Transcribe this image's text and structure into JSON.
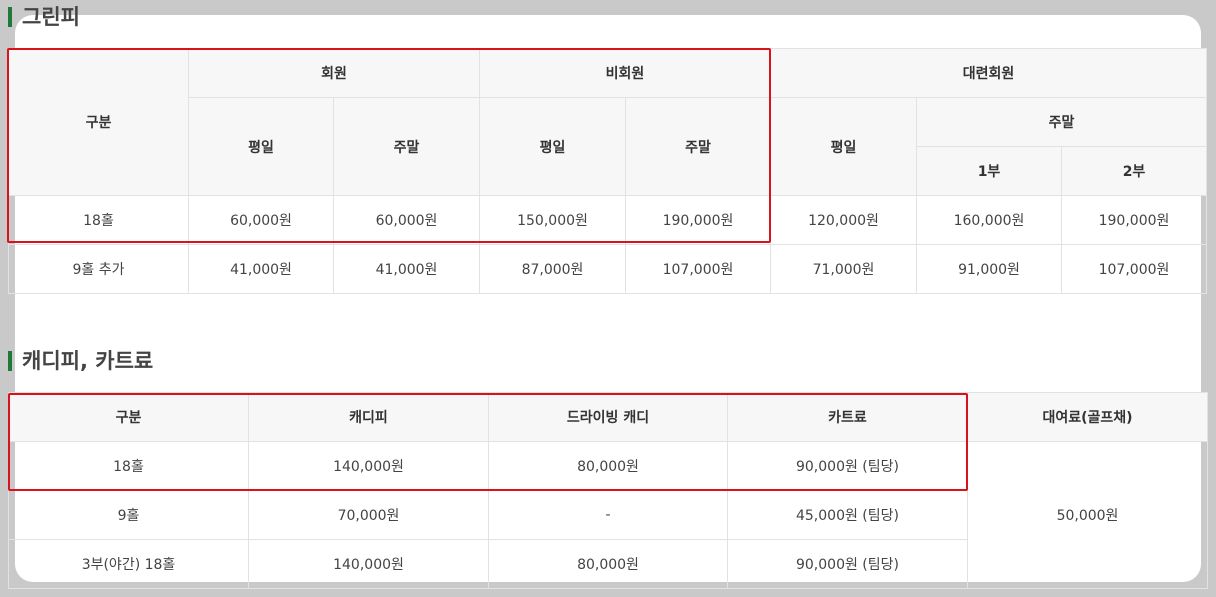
{
  "green_fee": {
    "title": "그린피",
    "headers": {
      "category": "구분",
      "member": "회원",
      "non_member": "비회원",
      "associate": "대련회원",
      "weekday": "평일",
      "weekend": "주말",
      "part1": "1부",
      "part2": "2부"
    },
    "rows": [
      {
        "label": "18홀",
        "values": [
          "60,000원",
          "60,000원",
          "150,000원",
          "190,000원",
          "120,000원",
          "160,000원",
          "190,000원"
        ]
      },
      {
        "label": "9홀 추가",
        "values": [
          "41,000원",
          "41,000원",
          "87,000원",
          "107,000원",
          "71,000원",
          "91,000원",
          "107,000원"
        ]
      }
    ]
  },
  "caddie_fee": {
    "title": "캐디피, 카트료",
    "headers": [
      "구분",
      "캐디피",
      "드라이빙 캐디",
      "카트료",
      "대여료(골프채)"
    ],
    "rows": [
      {
        "label": "18홀",
        "values": [
          "140,000원",
          "80,000원",
          "90,000원 (팀당)"
        ]
      },
      {
        "label": "9홀",
        "values": [
          "70,000원",
          "-",
          "45,000원 (팀당)"
        ]
      },
      {
        "label": "3부(야간) 18홀",
        "values": [
          "140,000원",
          "80,000원",
          "90,000원 (팀당)"
        ]
      }
    ],
    "rental": "50,000원"
  },
  "colors": {
    "accent_bar": "#1f7a3a",
    "highlight_box": "#d9121b",
    "header_bg": "#f7f7f7"
  }
}
